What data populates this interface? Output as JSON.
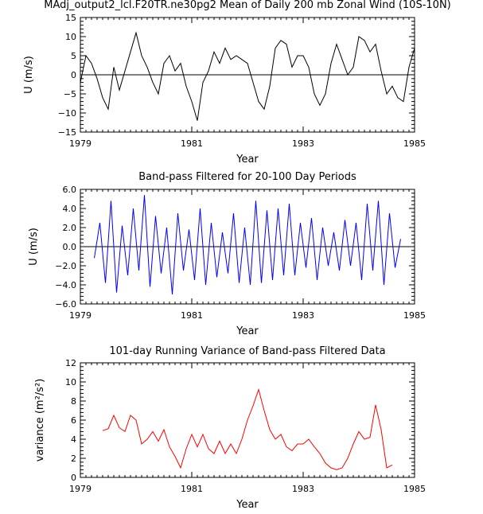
{
  "chart_data": [
    {
      "type": "line",
      "title": "MAdj_output2_lcl.F20TR.ne30pg2 Mean of Daily 200 mb Zonal Wind (10S-10N)",
      "xlabel": "Year",
      "ylabel": "U (m/s)",
      "xlim": [
        1979,
        1985
      ],
      "ylim": [
        -15,
        15
      ],
      "xticks": [
        1979,
        1981,
        1983,
        1985
      ],
      "xtick_labels": [
        "1979",
        "1981",
        "1983",
        "1985"
      ],
      "yticks": [
        -15,
        -10,
        -5,
        0,
        5,
        10,
        15
      ],
      "ytick_labels": [
        "−15",
        "−10",
        "−5",
        "0",
        "5",
        "10",
        "15"
      ],
      "zero_line": true,
      "color": "#000000",
      "series": [
        {
          "name": "U",
          "x": [
            1979.0,
            1979.1,
            1979.2,
            1979.3,
            1979.4,
            1979.5,
            1979.6,
            1979.7,
            1979.8,
            1979.9,
            1980.0,
            1980.1,
            1980.2,
            1980.3,
            1980.4,
            1980.5,
            1980.6,
            1980.7,
            1980.8,
            1980.9,
            1981.0,
            1981.1,
            1981.2,
            1981.3,
            1981.4,
            1981.5,
            1981.6,
            1981.7,
            1981.8,
            1981.9,
            1982.0,
            1982.1,
            1982.2,
            1982.3,
            1982.4,
            1982.5,
            1982.6,
            1982.7,
            1982.8,
            1982.9,
            1983.0,
            1983.1,
            1983.2,
            1983.3,
            1983.4,
            1983.5,
            1983.6,
            1983.7,
            1983.8,
            1983.9,
            1984.0,
            1984.1,
            1984.2,
            1984.3,
            1984.4,
            1984.5,
            1984.6,
            1984.7,
            1984.8,
            1984.9,
            1985.0
          ],
          "values": [
            -2,
            5,
            3,
            -1,
            -6,
            -9,
            2,
            -4,
            1,
            6,
            11,
            5,
            2,
            -2,
            -5,
            3,
            5,
            1,
            3,
            -3,
            -7,
            -12,
            -2,
            1,
            6,
            3,
            7,
            4,
            5,
            4,
            3,
            -2,
            -7,
            -9,
            -3,
            7,
            9,
            8,
            2,
            5,
            5,
            2,
            -5,
            -8,
            -5,
            3,
            8,
            4,
            0,
            2,
            10,
            9,
            6,
            8,
            1,
            -5,
            -3,
            -6,
            -7,
            2,
            7
          ]
        }
      ]
    },
    {
      "type": "line",
      "title": "Band-pass Filtered for 20-100 Day Periods",
      "xlabel": "Year",
      "ylabel": "U (m/s)",
      "xlim": [
        1979,
        1985
      ],
      "ylim": [
        -6,
        6
      ],
      "xticks": [
        1979,
        1981,
        1983,
        1985
      ],
      "xtick_labels": [
        "1979",
        "1981",
        "1983",
        "1985"
      ],
      "yticks": [
        -6,
        -4,
        -2,
        0,
        2,
        4,
        6
      ],
      "ytick_labels": [
        "−6.0",
        "−4.0",
        "−2.0",
        "0.0",
        "2.0",
        "4.0",
        "6.0"
      ],
      "zero_line": true,
      "color": "#0000ff",
      "series": [
        {
          "name": "U filtered",
          "x": [
            1979.25,
            1979.35,
            1979.45,
            1979.55,
            1979.65,
            1979.75,
            1979.85,
            1979.95,
            1980.05,
            1980.15,
            1980.25,
            1980.35,
            1980.45,
            1980.55,
            1980.65,
            1980.75,
            1980.85,
            1980.95,
            1981.05,
            1981.15,
            1981.25,
            1981.35,
            1981.45,
            1981.55,
            1981.65,
            1981.75,
            1981.85,
            1981.95,
            1982.05,
            1982.15,
            1982.25,
            1982.35,
            1982.45,
            1982.55,
            1982.65,
            1982.75,
            1982.85,
            1982.95,
            1983.05,
            1983.15,
            1983.25,
            1983.35,
            1983.45,
            1983.55,
            1983.65,
            1983.75,
            1983.85,
            1983.95,
            1984.05,
            1984.15,
            1984.25,
            1984.35,
            1984.45,
            1984.55,
            1984.65,
            1984.75
          ],
          "values": [
            -1.2,
            2.5,
            -3.8,
            4.8,
            -4.8,
            2.2,
            -3.0,
            4.0,
            -2.5,
            5.4,
            -4.2,
            3.2,
            -2.8,
            2.0,
            -5.0,
            3.5,
            -2.5,
            1.8,
            -3.5,
            4.0,
            -4.0,
            2.5,
            -3.2,
            1.5,
            -2.8,
            3.5,
            -3.8,
            2.0,
            -4.0,
            4.8,
            -3.8,
            3.8,
            -3.5,
            4.0,
            -3.0,
            4.5,
            -3.0,
            2.5,
            -2.2,
            3.0,
            -3.5,
            2.0,
            -2.0,
            1.5,
            -2.5,
            2.8,
            -2.0,
            2.5,
            -3.5,
            4.5,
            -2.5,
            4.8,
            -4.0,
            3.5,
            -2.2,
            0.8
          ]
        }
      ]
    },
    {
      "type": "line",
      "title": "101-day Running Variance of Band-pass Filtered Data",
      "xlabel": "Year",
      "ylabel": "variance (m²/s²)",
      "xlim": [
        1979,
        1985
      ],
      "ylim": [
        0,
        12
      ],
      "xticks": [
        1979,
        1981,
        1983,
        1985
      ],
      "xtick_labels": [
        "1979",
        "1981",
        "1983",
        "1985"
      ],
      "yticks": [
        0,
        2,
        4,
        6,
        8,
        10,
        12
      ],
      "ytick_labels": [
        "0",
        "2",
        "4",
        "6",
        "8",
        "10",
        "12"
      ],
      "zero_line": false,
      "color": "#ff0000",
      "series": [
        {
          "name": "variance",
          "x": [
            1979.4,
            1979.5,
            1979.6,
            1979.7,
            1979.8,
            1979.9,
            1980.0,
            1980.1,
            1980.2,
            1980.3,
            1980.4,
            1980.5,
            1980.6,
            1980.7,
            1980.8,
            1980.9,
            1981.0,
            1981.1,
            1981.2,
            1981.3,
            1981.4,
            1981.5,
            1981.6,
            1981.7,
            1981.8,
            1981.9,
            1982.0,
            1982.1,
            1982.2,
            1982.3,
            1982.4,
            1982.5,
            1982.6,
            1982.7,
            1982.8,
            1982.9,
            1983.0,
            1983.1,
            1983.2,
            1983.3,
            1983.4,
            1983.5,
            1983.6,
            1983.7,
            1983.8,
            1983.9,
            1984.0,
            1984.1,
            1984.2,
            1984.3,
            1984.4,
            1984.5,
            1984.6
          ],
          "values": [
            4.9,
            5.1,
            6.5,
            5.2,
            4.8,
            6.5,
            6.0,
            3.5,
            4.0,
            4.8,
            3.8,
            5.0,
            3.2,
            2.2,
            1.0,
            3.0,
            4.5,
            3.2,
            4.5,
            3.0,
            2.5,
            3.8,
            2.5,
            3.5,
            2.5,
            4.0,
            6.0,
            7.5,
            9.2,
            7.0,
            5.0,
            4.0,
            4.5,
            3.2,
            2.8,
            3.5,
            3.5,
            4.0,
            3.2,
            2.5,
            1.5,
            1.0,
            0.8,
            1.0,
            2.0,
            3.5,
            4.8,
            4.0,
            4.2,
            7.6,
            5.0,
            1.0,
            1.3
          ]
        }
      ]
    }
  ]
}
